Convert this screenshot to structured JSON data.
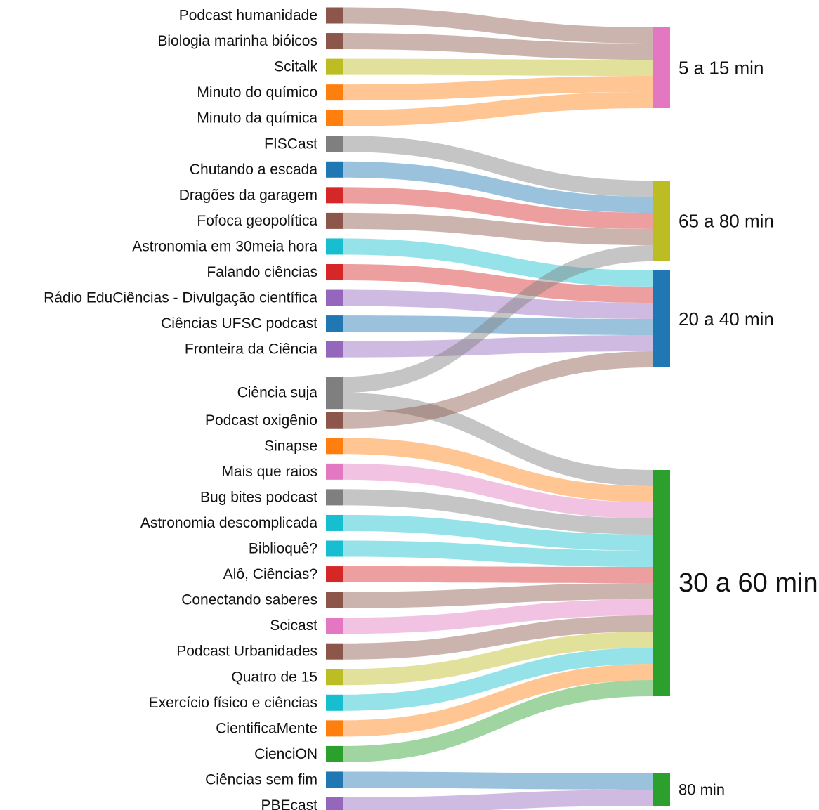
{
  "palette": {
    "brown": "#8c564b",
    "olive": "#bcbd22",
    "orange": "#ff7f0e",
    "gray": "#7f7f7f",
    "blue": "#1f77b4",
    "red": "#d62728",
    "cyan": "#17becf",
    "purple": "#9467bd",
    "pink": "#e377c2",
    "green": "#2ca02c"
  },
  "diagram": {
    "type": "sankey",
    "targets": [
      {
        "id": "t5",
        "label": "5 a 15 min",
        "color": "pink"
      },
      {
        "id": "t65",
        "label": "65 a 80 min",
        "color": "olive"
      },
      {
        "id": "t20",
        "label": "20 a 40 min",
        "color": "blue"
      },
      {
        "id": "t30",
        "label": "30 a 60 min",
        "color": "green"
      },
      {
        "id": "t80",
        "label": "80 min",
        "color": "green"
      }
    ],
    "sources": [
      {
        "label": "Podcast humanidade",
        "color": "brown",
        "targets": [
          "t5"
        ]
      },
      {
        "label": "Biologia marinha bióicos",
        "color": "brown",
        "targets": [
          "t5"
        ]
      },
      {
        "label": "Scitalk",
        "color": "olive",
        "targets": [
          "t5"
        ]
      },
      {
        "label": "Minuto do químico",
        "color": "orange",
        "targets": [
          "t5"
        ]
      },
      {
        "label": "Minuto da química",
        "color": "orange",
        "targets": [
          "t5"
        ]
      },
      {
        "label": "FISCast",
        "color": "gray",
        "targets": [
          "t65"
        ]
      },
      {
        "label": "Chutando a escada",
        "color": "blue",
        "targets": [
          "t65"
        ]
      },
      {
        "label": "Dragões da garagem",
        "color": "red",
        "targets": [
          "t65"
        ]
      },
      {
        "label": "Fofoca geopolítica",
        "color": "brown",
        "targets": [
          "t65"
        ]
      },
      {
        "label": "Astronomia em 30meia hora",
        "color": "cyan",
        "targets": [
          "t20"
        ]
      },
      {
        "label": "Falando ciências",
        "color": "red",
        "targets": [
          "t20"
        ]
      },
      {
        "label": "Rádio EduCiências - Divulgação científica",
        "color": "purple",
        "targets": [
          "t20"
        ]
      },
      {
        "label": "Ciências UFSC podcast",
        "color": "blue",
        "targets": [
          "t20"
        ]
      },
      {
        "label": "Fronteira da Ciência",
        "color": "purple",
        "targets": [
          "t20"
        ]
      },
      {
        "label": "Ciência suja",
        "color": "gray",
        "targets": [
          "t65",
          "t30"
        ]
      },
      {
        "label": "Podcast oxigênio",
        "color": "brown",
        "targets": [
          "t20"
        ]
      },
      {
        "label": "Sinapse",
        "color": "orange",
        "targets": [
          "t30"
        ]
      },
      {
        "label": "Mais que raios",
        "color": "pink",
        "targets": [
          "t30"
        ]
      },
      {
        "label": "Bug bites podcast",
        "color": "gray",
        "targets": [
          "t30"
        ]
      },
      {
        "label": "Astronomia descomplicada",
        "color": "cyan",
        "targets": [
          "t30"
        ]
      },
      {
        "label": "Biblioquê?",
        "color": "cyan",
        "targets": [
          "t30"
        ]
      },
      {
        "label": "Alô, Ciências?",
        "color": "red",
        "targets": [
          "t30"
        ]
      },
      {
        "label": "Conectando saberes",
        "color": "brown",
        "targets": [
          "t30"
        ]
      },
      {
        "label": "Scicast",
        "color": "pink",
        "targets": [
          "t30"
        ]
      },
      {
        "label": "Podcast Urbanidades",
        "color": "brown",
        "targets": [
          "t30"
        ]
      },
      {
        "label": "Quatro de 15",
        "color": "olive",
        "targets": [
          "t30"
        ]
      },
      {
        "label": "Exercício físico e ciências",
        "color": "cyan",
        "targets": [
          "t30"
        ]
      },
      {
        "label": "CientificaMente",
        "color": "orange",
        "targets": [
          "t30"
        ]
      },
      {
        "label": "CienciON",
        "color": "green",
        "targets": [
          "t30"
        ]
      },
      {
        "label": "Ciências sem fim",
        "color": "blue",
        "targets": [
          "t80"
        ]
      },
      {
        "label": "PBEcast",
        "color": "purple",
        "targets": [
          "t80"
        ]
      }
    ]
  }
}
